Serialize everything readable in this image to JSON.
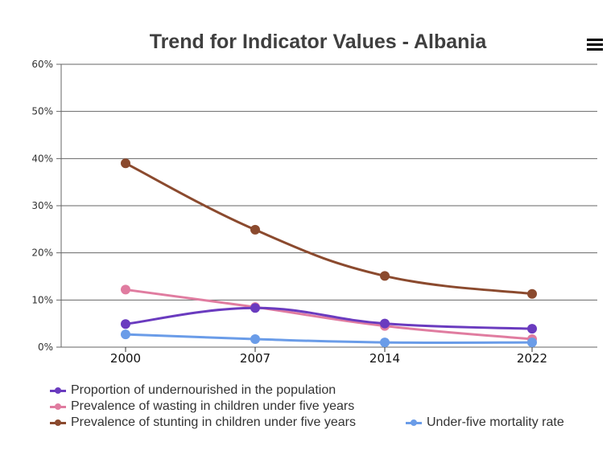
{
  "chart_data": {
    "type": "line",
    "title": "Trend for Indicator Values - Albania",
    "xlabel": "",
    "ylabel": "",
    "x": [
      "2000",
      "2007",
      "2014",
      "2022"
    ],
    "ylim": [
      0,
      60
    ],
    "y_ticks": [
      "0%",
      "10%",
      "20%",
      "30%",
      "40%",
      "50%",
      "60%"
    ],
    "y_tick_values": [
      0,
      10,
      20,
      30,
      40,
      50,
      60
    ],
    "grid": true,
    "legend_position": "bottom",
    "series": [
      {
        "name": "Proportion of undernourished in the population",
        "color": "#6a3bbf",
        "values": [
          4.9,
          8.3,
          5.0,
          3.9
        ]
      },
      {
        "name": "Prevalence of wasting in children under five years",
        "color": "#e07ca0",
        "values": [
          12.2,
          8.5,
          4.5,
          1.7
        ]
      },
      {
        "name": "Prevalence of stunting in children under five years",
        "color": "#8b4a2e",
        "values": [
          39.0,
          24.9,
          15.1,
          11.3
        ]
      },
      {
        "name": "Under-five mortality rate",
        "color": "#6a9ce8",
        "values": [
          2.7,
          1.7,
          1.0,
          1.0
        ]
      }
    ]
  },
  "menu": {
    "icon": "hamburger-menu-icon"
  }
}
